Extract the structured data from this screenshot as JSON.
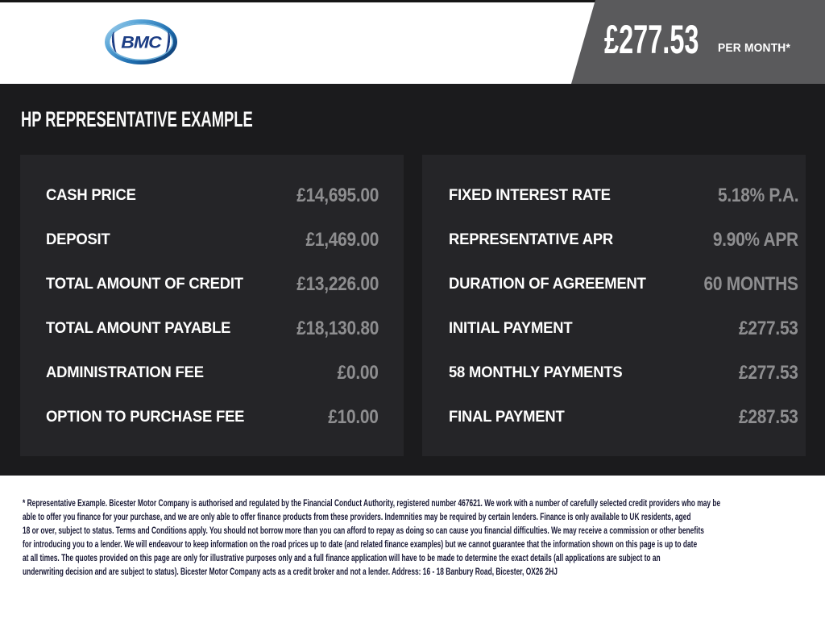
{
  "header": {
    "logo": {
      "text": "BMC"
    },
    "banner": {
      "amount": "£277.53",
      "period": "PER MONTH*"
    }
  },
  "title": "HP REPRESENTATIVE EXAMPLE",
  "panels": {
    "left": {
      "rows": [
        {
          "label": "CASH PRICE",
          "value": "£14,695.00"
        },
        {
          "label": "DEPOSIT",
          "value": "£1,469.00"
        },
        {
          "label": "TOTAL AMOUNT OF CREDIT",
          "value": "£13,226.00"
        },
        {
          "label": "TOTAL AMOUNT PAYABLE",
          "value": "£18,130.80"
        },
        {
          "label": "ADMINISTRATION FEE",
          "value": "£0.00"
        },
        {
          "label": "OPTION TO PURCHASE FEE",
          "value": "£10.00"
        }
      ]
    },
    "right": {
      "rows": [
        {
          "label": "FIXED INTEREST RATE",
          "value": "5.18% P.A."
        },
        {
          "label": "REPRESENTATIVE APR",
          "value": "9.90% APR"
        },
        {
          "label": "DURATION OF AGREEMENT",
          "value": "60 MONTHS"
        },
        {
          "label": "INITIAL PAYMENT",
          "value": "£277.53"
        },
        {
          "label": "58 MONTHLY PAYMENTS",
          "value": "£277.53"
        },
        {
          "label": "FINAL PAYMENT",
          "value": "£287.53"
        }
      ]
    }
  },
  "disclaimer": {
    "lines": [
      "* Representative Example. Bicester Motor Company is authorised and regulated by the Financial Conduct Authority, registered number 467621. We work with a number of carefully selected credit providers who may be",
      "able to offer you finance for your purchase, and we are only able to offer finance products from these providers. Indemnities may be required by certain lenders. Finance is only available to UK residents, aged",
      "18 or over, subject to status. Terms and Conditions apply. You should not borrow more than you can afford to repay as doing so can cause you financial difficulties. We may receive a commission or other benefits",
      "for introducing you to a lender. We will endeavour to keep information on the road prices up to date (and related finance examples) but we cannot guarantee that the information shown on this page is up to date",
      "at all times. The quotes provided on this page are only for illustrative purposes only and a full finance application will have to be made to determine the exact details (all applications are subject to an",
      "underwriting decision and are subject to status). Bicester Motor Company acts as a credit broker and not a lender. Address: 16 - 18 Banbury Road, Bicester, OX26 2HJ"
    ]
  },
  "colors": {
    "banner_gray": "#5a5a5c",
    "body_background": "#1b1b1d",
    "panel_background": "#252528",
    "label_text": "#ffffff",
    "value_text": "#8e8e90",
    "disclaimer_text": "#191936",
    "logo_blue": "#1d3e85"
  }
}
